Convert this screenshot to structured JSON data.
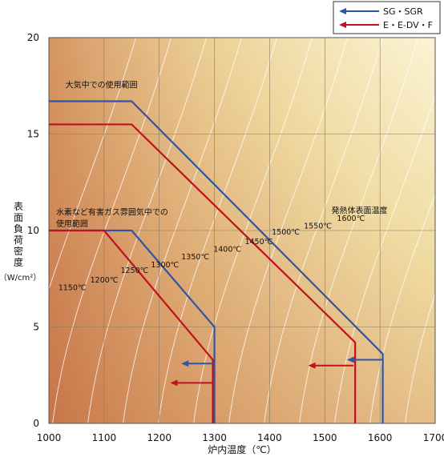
{
  "chart_data": {
    "type": "line",
    "xlabel": "炉内温度（℃）",
    "ylabel_chars": [
      "表",
      "面",
      "負",
      "荷",
      "密",
      "度"
    ],
    "ylabel_unit": "（W/cm²）",
    "xlim": [
      1000,
      1700
    ],
    "ylim": [
      0,
      20
    ],
    "xticks": [
      1000,
      1100,
      1200,
      1300,
      1400,
      1500,
      1600,
      1700
    ],
    "yticks": [
      0,
      5,
      10,
      15,
      20
    ],
    "grid": true,
    "legend_position": "top-right",
    "series": [
      {
        "name": "SG・SGR",
        "color": "#2f55a4",
        "group": "air",
        "x": [
          1000,
          1150,
          1605,
          1605
        ],
        "y": [
          16.7,
          16.7,
          3.6,
          0
        ]
      },
      {
        "name": "E・E-DV・F",
        "color": "#c0111f",
        "group": "air",
        "x": [
          1000,
          1150,
          1555,
          1555
        ],
        "y": [
          15.5,
          15.5,
          4.2,
          0
        ]
      },
      {
        "name": "SG・SGR",
        "color": "#2f55a4",
        "group": "hydrogen",
        "x": [
          1000,
          1150,
          1300,
          1300
        ],
        "y": [
          10,
          10,
          5,
          0
        ]
      },
      {
        "name": "E・E-DV・F",
        "color": "#c0111f",
        "group": "hydrogen",
        "x": [
          1000,
          1100,
          1297,
          1297
        ],
        "y": [
          10,
          10,
          3.3,
          0
        ]
      }
    ],
    "annotations": [
      {
        "text": "大気中での使用範囲",
        "x": 1030,
        "y": 17.4
      },
      {
        "text": "水素など有害ガス雰囲気中での",
        "x": 1013,
        "y": 10.8
      },
      {
        "text": "使用範囲",
        "x": 1013,
        "y": 10.2
      },
      {
        "text": "発熱体表面温度",
        "x": 1512,
        "y": 10.9
      }
    ],
    "isotherm_labels": [
      {
        "text": "1150℃",
        "x": 1017,
        "y": 6.9
      },
      {
        "text": "1200℃",
        "x": 1075,
        "y": 7.3
      },
      {
        "text": "1250℃",
        "x": 1130,
        "y": 7.8
      },
      {
        "text": "1300℃",
        "x": 1185,
        "y": 8.1
      },
      {
        "text": "1350℃",
        "x": 1240,
        "y": 8.5
      },
      {
        "text": "1400℃",
        "x": 1298,
        "y": 8.9
      },
      {
        "text": "1450℃",
        "x": 1355,
        "y": 9.3
      },
      {
        "text": "1500℃",
        "x": 1404,
        "y": 9.8
      },
      {
        "text": "1550℃",
        "x": 1462,
        "y": 10.1
      },
      {
        "text": "1600℃",
        "x": 1522,
        "y": 10.5
      }
    ],
    "arrows": [
      {
        "color": "#2f55a4",
        "x_from": 1605,
        "x_to": 1540,
        "y": 3.3
      },
      {
        "color": "#c0111f",
        "x_from": 1552,
        "x_to": 1470,
        "y": 3.0
      },
      {
        "color": "#2f55a4",
        "x_from": 1297,
        "x_to": 1240,
        "y": 3.1
      },
      {
        "color": "#c0111f",
        "x_from": 1297,
        "x_to": 1220,
        "y": 2.1
      }
    ]
  }
}
